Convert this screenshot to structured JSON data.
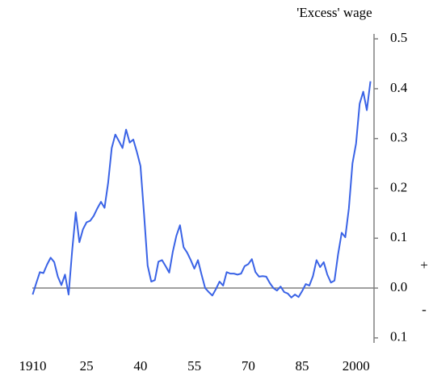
{
  "chart_data": {
    "type": "line",
    "title": "'Excess' wage",
    "annotations": [
      "+",
      "-"
    ],
    "x": [
      1910,
      1911,
      1912,
      1913,
      1914,
      1915,
      1916,
      1917,
      1918,
      1919,
      1920,
      1921,
      1922,
      1923,
      1924,
      1925,
      1926,
      1927,
      1928,
      1929,
      1930,
      1931,
      1932,
      1933,
      1934,
      1935,
      1936,
      1937,
      1938,
      1939,
      1940,
      1941,
      1942,
      1943,
      1944,
      1945,
      1946,
      1947,
      1948,
      1949,
      1950,
      1951,
      1952,
      1953,
      1954,
      1955,
      1956,
      1957,
      1958,
      1959,
      1960,
      1961,
      1962,
      1963,
      1964,
      1965,
      1966,
      1967,
      1968,
      1969,
      1970,
      1971,
      1972,
      1973,
      1974,
      1975,
      1976,
      1977,
      1978,
      1979,
      1980,
      1981,
      1982,
      1983,
      1984,
      1985,
      1986,
      1987,
      1988,
      1989,
      1990,
      1991,
      1992,
      1993,
      1994,
      1995,
      1996,
      1997,
      1998,
      1999,
      2000,
      2001,
      2002,
      2003,
      2004
    ],
    "series": [
      {
        "color": "#3a63e6",
        "values": [
          -0.013,
          0.01,
          0.032,
          0.03,
          0.047,
          0.061,
          0.052,
          0.023,
          0.006,
          0.027,
          -0.013,
          0.076,
          0.152,
          0.092,
          0.118,
          0.132,
          0.135,
          0.145,
          0.16,
          0.173,
          0.161,
          0.211,
          0.281,
          0.308,
          0.295,
          0.281,
          0.318,
          0.292,
          0.298,
          0.273,
          0.245,
          0.148,
          0.045,
          0.013,
          0.016,
          0.053,
          0.056,
          0.044,
          0.031,
          0.073,
          0.105,
          0.126,
          0.082,
          0.071,
          0.056,
          0.039,
          0.056,
          0.027,
          0.0,
          -0.008,
          -0.015,
          -0.002,
          0.013,
          0.005,
          0.032,
          0.029,
          0.029,
          0.027,
          0.029,
          0.044,
          0.048,
          0.058,
          0.032,
          0.023,
          0.024,
          0.023,
          0.01,
          0.0,
          -0.005,
          0.003,
          -0.008,
          -0.011,
          -0.019,
          -0.013,
          -0.018,
          -0.006,
          0.008,
          0.005,
          0.024,
          0.056,
          0.042,
          0.052,
          0.027,
          0.011,
          0.015,
          0.068,
          0.111,
          0.102,
          0.16,
          0.25,
          0.29,
          0.37,
          0.394,
          0.357,
          0.415
        ]
      }
    ],
    "xlim": [
      1909,
      2005
    ],
    "xticks": [
      1910,
      {
        "value": 1925,
        "label": "25"
      },
      {
        "value": 1940,
        "label": "40"
      },
      {
        "value": 1955,
        "label": "55"
      },
      {
        "value": 1970,
        "label": "70"
      },
      {
        "value": 1985,
        "label": "85"
      },
      2000
    ],
    "ylim": [
      -0.11,
      0.51
    ],
    "yticks": [
      {
        "value": -0.1,
        "label": "0.1"
      },
      {
        "value": 0,
        "label": "0.0"
      },
      0.1,
      0.2,
      0.3,
      0.4,
      0.5
    ]
  }
}
